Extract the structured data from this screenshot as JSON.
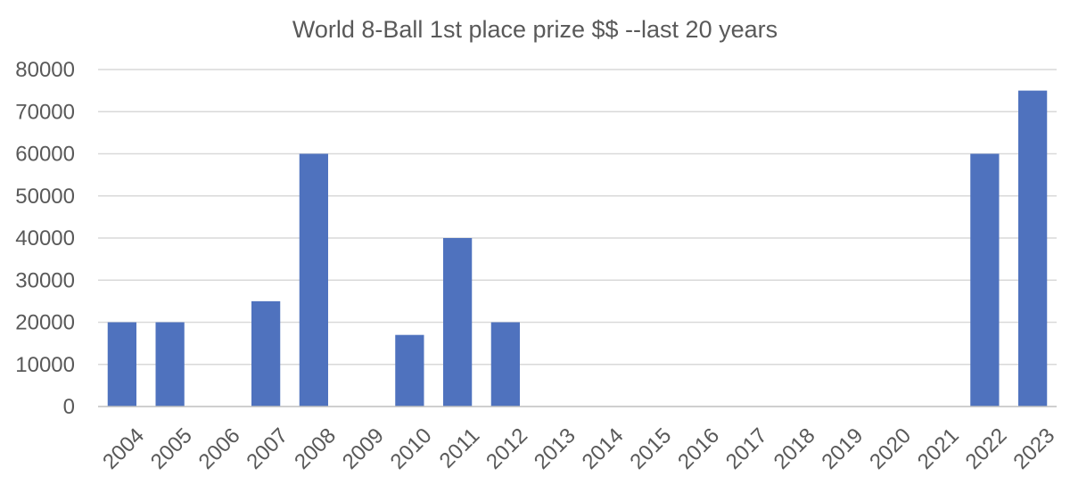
{
  "chart_data": {
    "type": "bar",
    "title": "World 8-Ball 1st place prize $$ --last 20 years",
    "xlabel": "",
    "ylabel": "",
    "categories": [
      "2004",
      "2005",
      "2006",
      "2007",
      "2008",
      "2009",
      "2010",
      "2011",
      "2012",
      "2013",
      "2014",
      "2015",
      "2016",
      "2017",
      "2018",
      "2019",
      "2020",
      "2021",
      "2022",
      "2023"
    ],
    "values": [
      20000,
      20000,
      0,
      25000,
      60000,
      0,
      17000,
      40000,
      20000,
      0,
      0,
      0,
      0,
      0,
      0,
      0,
      0,
      0,
      60000,
      75000
    ],
    "ylim": [
      0,
      80000
    ],
    "yticks": [
      "0",
      "10000",
      "20000",
      "30000",
      "40000",
      "50000",
      "60000",
      "70000",
      "80000"
    ],
    "grid": true,
    "legend": "none",
    "bar_color": "#4F72BE"
  }
}
